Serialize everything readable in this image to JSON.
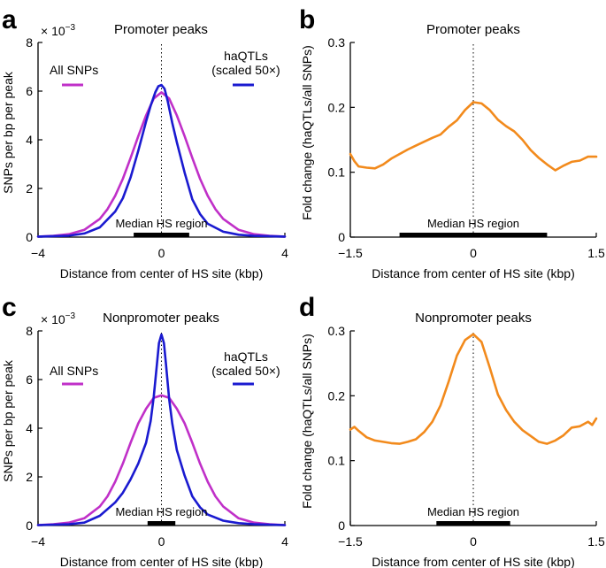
{
  "chart_data": [
    {
      "panel": "a",
      "type": "line",
      "title": "Promoter peaks",
      "xlabel": "Distance from center of HS site (kbp)",
      "ylabel": "SNPs per bp per peak",
      "y_multiplier": "× 10",
      "y_multiplier_exp": "−3",
      "xlim": [
        -4,
        4
      ],
      "ylim": [
        0,
        8
      ],
      "xticks": [
        -4,
        0,
        4
      ],
      "xticklabels": [
        "−4",
        "0",
        "4"
      ],
      "yticks": [
        0,
        2,
        4,
        6,
        8
      ],
      "yticklabels": [
        "0",
        "2",
        "4",
        "6",
        "8"
      ],
      "median_hs_label": "Median HS region",
      "median_hs_range": [
        -0.9,
        0.9
      ],
      "center_line_x": 0,
      "series": [
        {
          "name": "All SNPs",
          "legend_label": [
            "All SNPs"
          ],
          "color": "#c030c8",
          "x": [
            -4,
            -3.5,
            -3,
            -2.5,
            -2,
            -1.75,
            -1.5,
            -1.25,
            -1,
            -0.75,
            -0.5,
            -0.25,
            0,
            0.25,
            0.5,
            0.75,
            1,
            1.25,
            1.5,
            1.75,
            2,
            2.5,
            3,
            3.5,
            4
          ],
          "values": [
            0.02,
            0.05,
            0.12,
            0.3,
            0.75,
            1.15,
            1.7,
            2.4,
            3.25,
            4.15,
            5.0,
            5.7,
            5.95,
            5.7,
            5.0,
            4.15,
            3.25,
            2.4,
            1.7,
            1.15,
            0.75,
            0.3,
            0.12,
            0.05,
            0.02
          ]
        },
        {
          "name": "haQTLs (scaled 50×)",
          "legend_label": [
            "haQTLs",
            "(scaled 50×)"
          ],
          "color": "#1a1ad0",
          "x": [
            -4,
            -3,
            -2.5,
            -2,
            -1.5,
            -1.25,
            -1,
            -0.75,
            -0.5,
            -0.35,
            -0.2,
            -0.1,
            0,
            0.1,
            0.2,
            0.35,
            0.5,
            0.75,
            1,
            1.25,
            1.5,
            2,
            2.5,
            3,
            4
          ],
          "values": [
            0.02,
            0.06,
            0.15,
            0.4,
            1.05,
            1.6,
            2.45,
            3.55,
            4.75,
            5.4,
            5.95,
            6.2,
            6.25,
            6.1,
            5.6,
            4.7,
            3.9,
            2.65,
            1.55,
            0.95,
            0.55,
            0.22,
            0.1,
            0.05,
            0.02
          ]
        }
      ]
    },
    {
      "panel": "b",
      "type": "line",
      "title": "Promoter peaks",
      "xlabel": "Distance from center of HS site (kbp)",
      "ylabel": "Fold change (haQTLs/all SNPs)",
      "xlim": [
        -1.5,
        1.5
      ],
      "ylim": [
        0,
        0.3
      ],
      "xticks": [
        -1.5,
        0,
        1.5
      ],
      "xticklabels": [
        "−1.5",
        "0",
        "1.5"
      ],
      "yticks": [
        0,
        0.1,
        0.2,
        0.3
      ],
      "yticklabels": [
        "0",
        "0.1",
        "0.2",
        "0.3"
      ],
      "median_hs_label": "Median HS region",
      "median_hs_range": [
        -0.9,
        0.9
      ],
      "center_line_x": 0,
      "series": [
        {
          "color": "#f28a1c",
          "x": [
            -1.5,
            -1.45,
            -1.4,
            -1.3,
            -1.2,
            -1.1,
            -1.0,
            -0.9,
            -0.8,
            -0.7,
            -0.6,
            -0.5,
            -0.4,
            -0.3,
            -0.2,
            -0.1,
            0,
            0.1,
            0.2,
            0.3,
            0.4,
            0.5,
            0.6,
            0.7,
            0.8,
            0.9,
            1.0,
            1.1,
            1.2,
            1.3,
            1.4,
            1.5
          ],
          "values": [
            0.128,
            0.117,
            0.109,
            0.107,
            0.106,
            0.112,
            0.121,
            0.128,
            0.135,
            0.141,
            0.147,
            0.153,
            0.158,
            0.17,
            0.18,
            0.196,
            0.208,
            0.206,
            0.196,
            0.181,
            0.171,
            0.163,
            0.15,
            0.134,
            0.122,
            0.112,
            0.103,
            0.11,
            0.116,
            0.118,
            0.124,
            0.124
          ]
        }
      ]
    },
    {
      "panel": "c",
      "type": "line",
      "title": "Nonpromoter peaks",
      "xlabel": "Distance from center of HS site (kbp)",
      "ylabel": "SNPs per bp per peak",
      "y_multiplier": "× 10",
      "y_multiplier_exp": "−3",
      "xlim": [
        -4,
        4
      ],
      "ylim": [
        0,
        8
      ],
      "xticks": [
        -4,
        0,
        4
      ],
      "xticklabels": [
        "−4",
        "0",
        "4"
      ],
      "yticks": [
        0,
        2,
        4,
        6,
        8
      ],
      "yticklabels": [
        "0",
        "2",
        "4",
        "6",
        "8"
      ],
      "median_hs_label": "Median HS region",
      "median_hs_range": [
        -0.45,
        0.45
      ],
      "center_line_x": 0,
      "series": [
        {
          "name": "All SNPs",
          "legend_label": [
            "All SNPs"
          ],
          "color": "#c030c8",
          "x": [
            -4,
            -3.5,
            -3,
            -2.5,
            -2,
            -1.75,
            -1.5,
            -1.25,
            -1,
            -0.75,
            -0.5,
            -0.25,
            0,
            0.25,
            0.5,
            0.75,
            1,
            1.25,
            1.5,
            1.75,
            2,
            2.5,
            3,
            3.5,
            4
          ],
          "values": [
            0.02,
            0.05,
            0.12,
            0.3,
            0.78,
            1.2,
            1.8,
            2.55,
            3.4,
            4.2,
            4.8,
            5.25,
            5.35,
            5.25,
            4.8,
            4.2,
            3.4,
            2.55,
            1.8,
            1.2,
            0.78,
            0.3,
            0.12,
            0.05,
            0.02
          ]
        },
        {
          "name": "haQTLs (scaled 50×)",
          "legend_label": [
            "haQTLs",
            "(scaled 50×)"
          ],
          "color": "#1a1ad0",
          "x": [
            -4,
            -3,
            -2.5,
            -2,
            -1.5,
            -1.25,
            -1,
            -0.75,
            -0.5,
            -0.35,
            -0.25,
            -0.15,
            -0.08,
            0,
            0.08,
            0.15,
            0.25,
            0.35,
            0.5,
            0.75,
            1,
            1.25,
            1.5,
            2,
            2.5,
            3,
            4
          ],
          "values": [
            0.02,
            0.05,
            0.12,
            0.4,
            0.95,
            1.35,
            1.9,
            2.55,
            3.4,
            4.3,
            5.3,
            6.6,
            7.5,
            7.85,
            7.5,
            6.6,
            5.2,
            4.2,
            3.1,
            2.05,
            1.2,
            0.75,
            0.45,
            0.2,
            0.1,
            0.05,
            0.02
          ]
        }
      ]
    },
    {
      "panel": "d",
      "type": "line",
      "title": "Nonpromoter peaks",
      "xlabel": "Distance from center of HS site (kbp)",
      "ylabel": "Fold change (haQTLs/all SNPs)",
      "xlim": [
        -1.5,
        1.5
      ],
      "ylim": [
        0,
        0.3
      ],
      "xticks": [
        -1.5,
        0,
        1.5
      ],
      "xticklabels": [
        "−1.5",
        "0",
        "1.5"
      ],
      "yticks": [
        0,
        0.1,
        0.2,
        0.3
      ],
      "yticklabels": [
        "0",
        "0.1",
        "0.2",
        "0.3"
      ],
      "median_hs_label": "Median HS region",
      "median_hs_range": [
        -0.45,
        0.45
      ],
      "center_line_x": 0,
      "series": [
        {
          "color": "#f28a1c",
          "x": [
            -1.5,
            -1.45,
            -1.4,
            -1.3,
            -1.2,
            -1.1,
            -1.0,
            -0.9,
            -0.8,
            -0.7,
            -0.6,
            -0.5,
            -0.4,
            -0.3,
            -0.2,
            -0.1,
            0,
            0.1,
            0.2,
            0.3,
            0.4,
            0.5,
            0.6,
            0.7,
            0.8,
            0.9,
            1.0,
            1.1,
            1.2,
            1.3,
            1.4,
            1.45,
            1.5
          ],
          "values": [
            0.148,
            0.152,
            0.146,
            0.136,
            0.131,
            0.129,
            0.127,
            0.126,
            0.129,
            0.133,
            0.144,
            0.16,
            0.185,
            0.222,
            0.262,
            0.286,
            0.295,
            0.283,
            0.244,
            0.202,
            0.178,
            0.16,
            0.147,
            0.138,
            0.129,
            0.126,
            0.131,
            0.139,
            0.151,
            0.153,
            0.16,
            0.155,
            0.165
          ]
        }
      ]
    }
  ],
  "panel_labels": [
    "a",
    "b",
    "c",
    "d"
  ]
}
